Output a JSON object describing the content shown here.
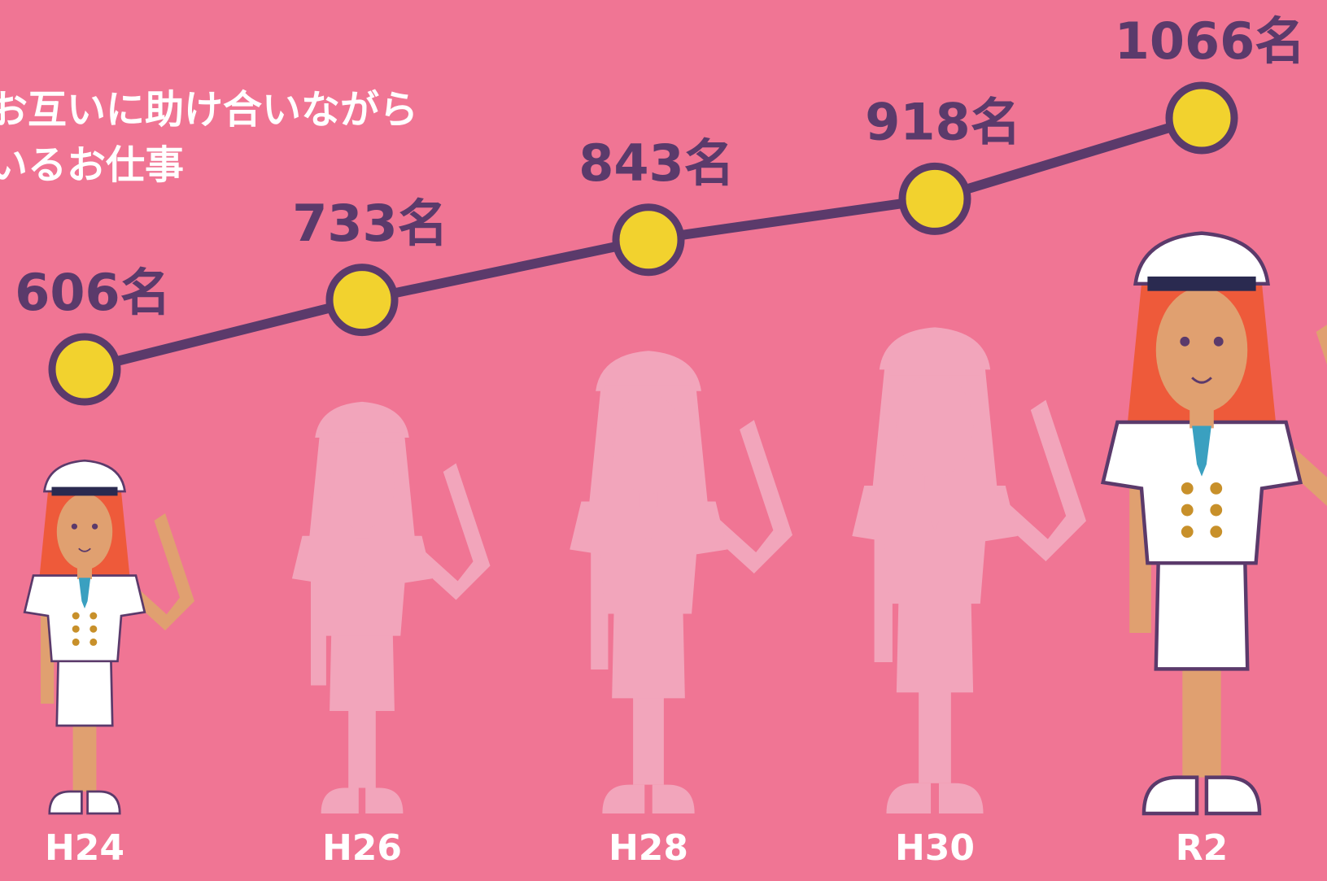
{
  "chart_data": {
    "type": "line",
    "annotations": [
      "お互いに助け合いながら",
      "いるお仕事"
    ],
    "categories": [
      "H24",
      "H26",
      "H28",
      "H30",
      "R2"
    ],
    "values": [
      606,
      733,
      843,
      918,
      1066
    ],
    "value_labels": [
      "606名",
      "733名",
      "843名",
      "918名",
      "1066名"
    ],
    "color": "#5b3a6b",
    "marker_color": "#f2d22e",
    "ylim": [
      0,
      1200
    ]
  }
}
